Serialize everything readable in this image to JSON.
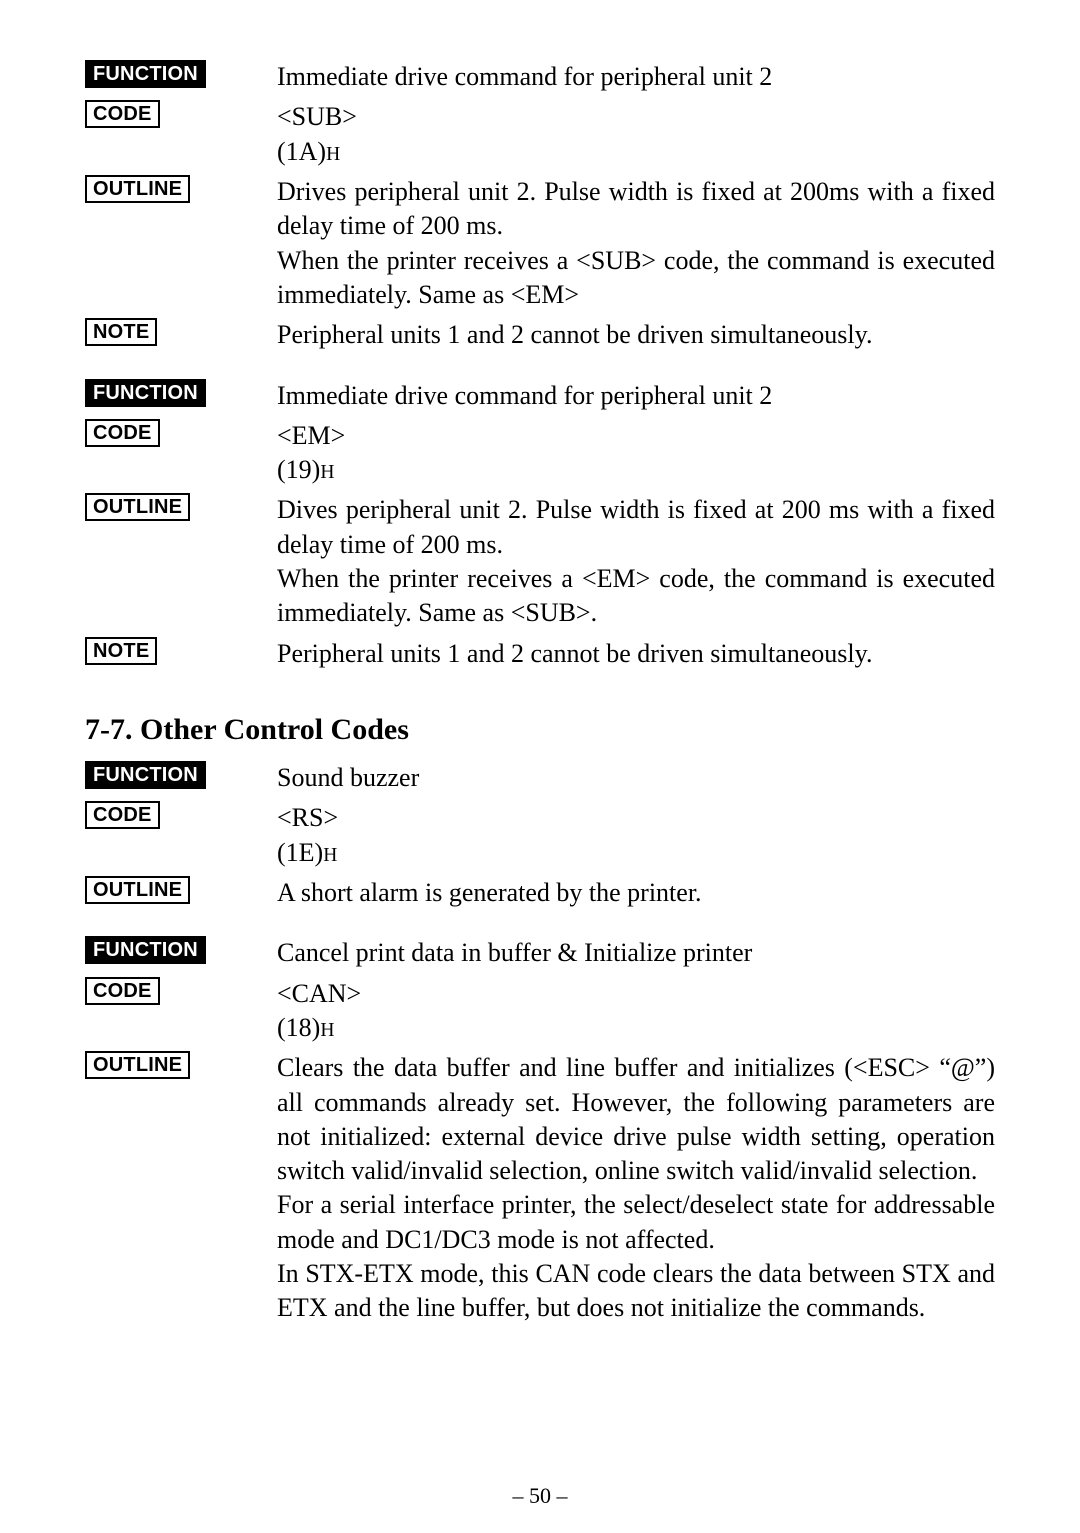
{
  "labels": {
    "function": "FUNCTION",
    "code": "CODE",
    "outline": "OUTLINE",
    "note": "NOTE"
  },
  "section_heading": "7-7. Other Control Codes",
  "page_number": "– 50 –",
  "block1": {
    "function_text": "Immediate drive command for peripheral unit 2",
    "code_line1": "<SUB>",
    "code_line2_pre": "(1A)",
    "code_line2_sub": "H",
    "outline_p1": "Drives peripheral unit 2. Pulse width is fixed at 200ms with a fixed delay time of 200 ms.",
    "outline_p2": "When the printer receives a <SUB> code, the command is executed immediately. Same as <EM>",
    "note_text": "Peripheral units 1 and 2 cannot be driven simultaneously."
  },
  "block2": {
    "function_text": "Immediate drive command  for peripheral unit 2",
    "code_line1": "<EM>",
    "code_line2_pre": "(19)",
    "code_line2_sub": "H",
    "outline_p1": "Dives peripheral unit 2. Pulse width is fixed at 200 ms with a fixed delay time of 200 ms.",
    "outline_p2": "When the printer receives a <EM> code, the command is executed immediately. Same as <SUB>.",
    "note_text": "Peripheral units 1 and 2 cannot be driven simultaneously."
  },
  "block3": {
    "function_text": "Sound buzzer",
    "code_line1": "<RS>",
    "code_line2_pre": "(1E)",
    "code_line2_sub": "H",
    "outline_p1": "A short alarm is generated by the printer."
  },
  "block4": {
    "function_text": "Cancel print data in buffer & Initialize printer",
    "code_line1": "<CAN>",
    "code_line2_pre": "(18)",
    "code_line2_sub": "H",
    "outline_p1": "Clears the data buffer and line buffer and initializes (<ESC> “@”) all commands already set. However, the following parameters are not initialized: external device drive pulse width setting, operation switch valid/invalid selection, online switch valid/invalid selection.",
    "outline_p2": "For a serial interface printer, the select/deselect state for addressable mode and DC1/DC3 mode is not affected.",
    "outline_p3": "In STX-ETX mode, this CAN code clears the data between STX and ETX and the line buffer, but does not initialize the commands."
  }
}
